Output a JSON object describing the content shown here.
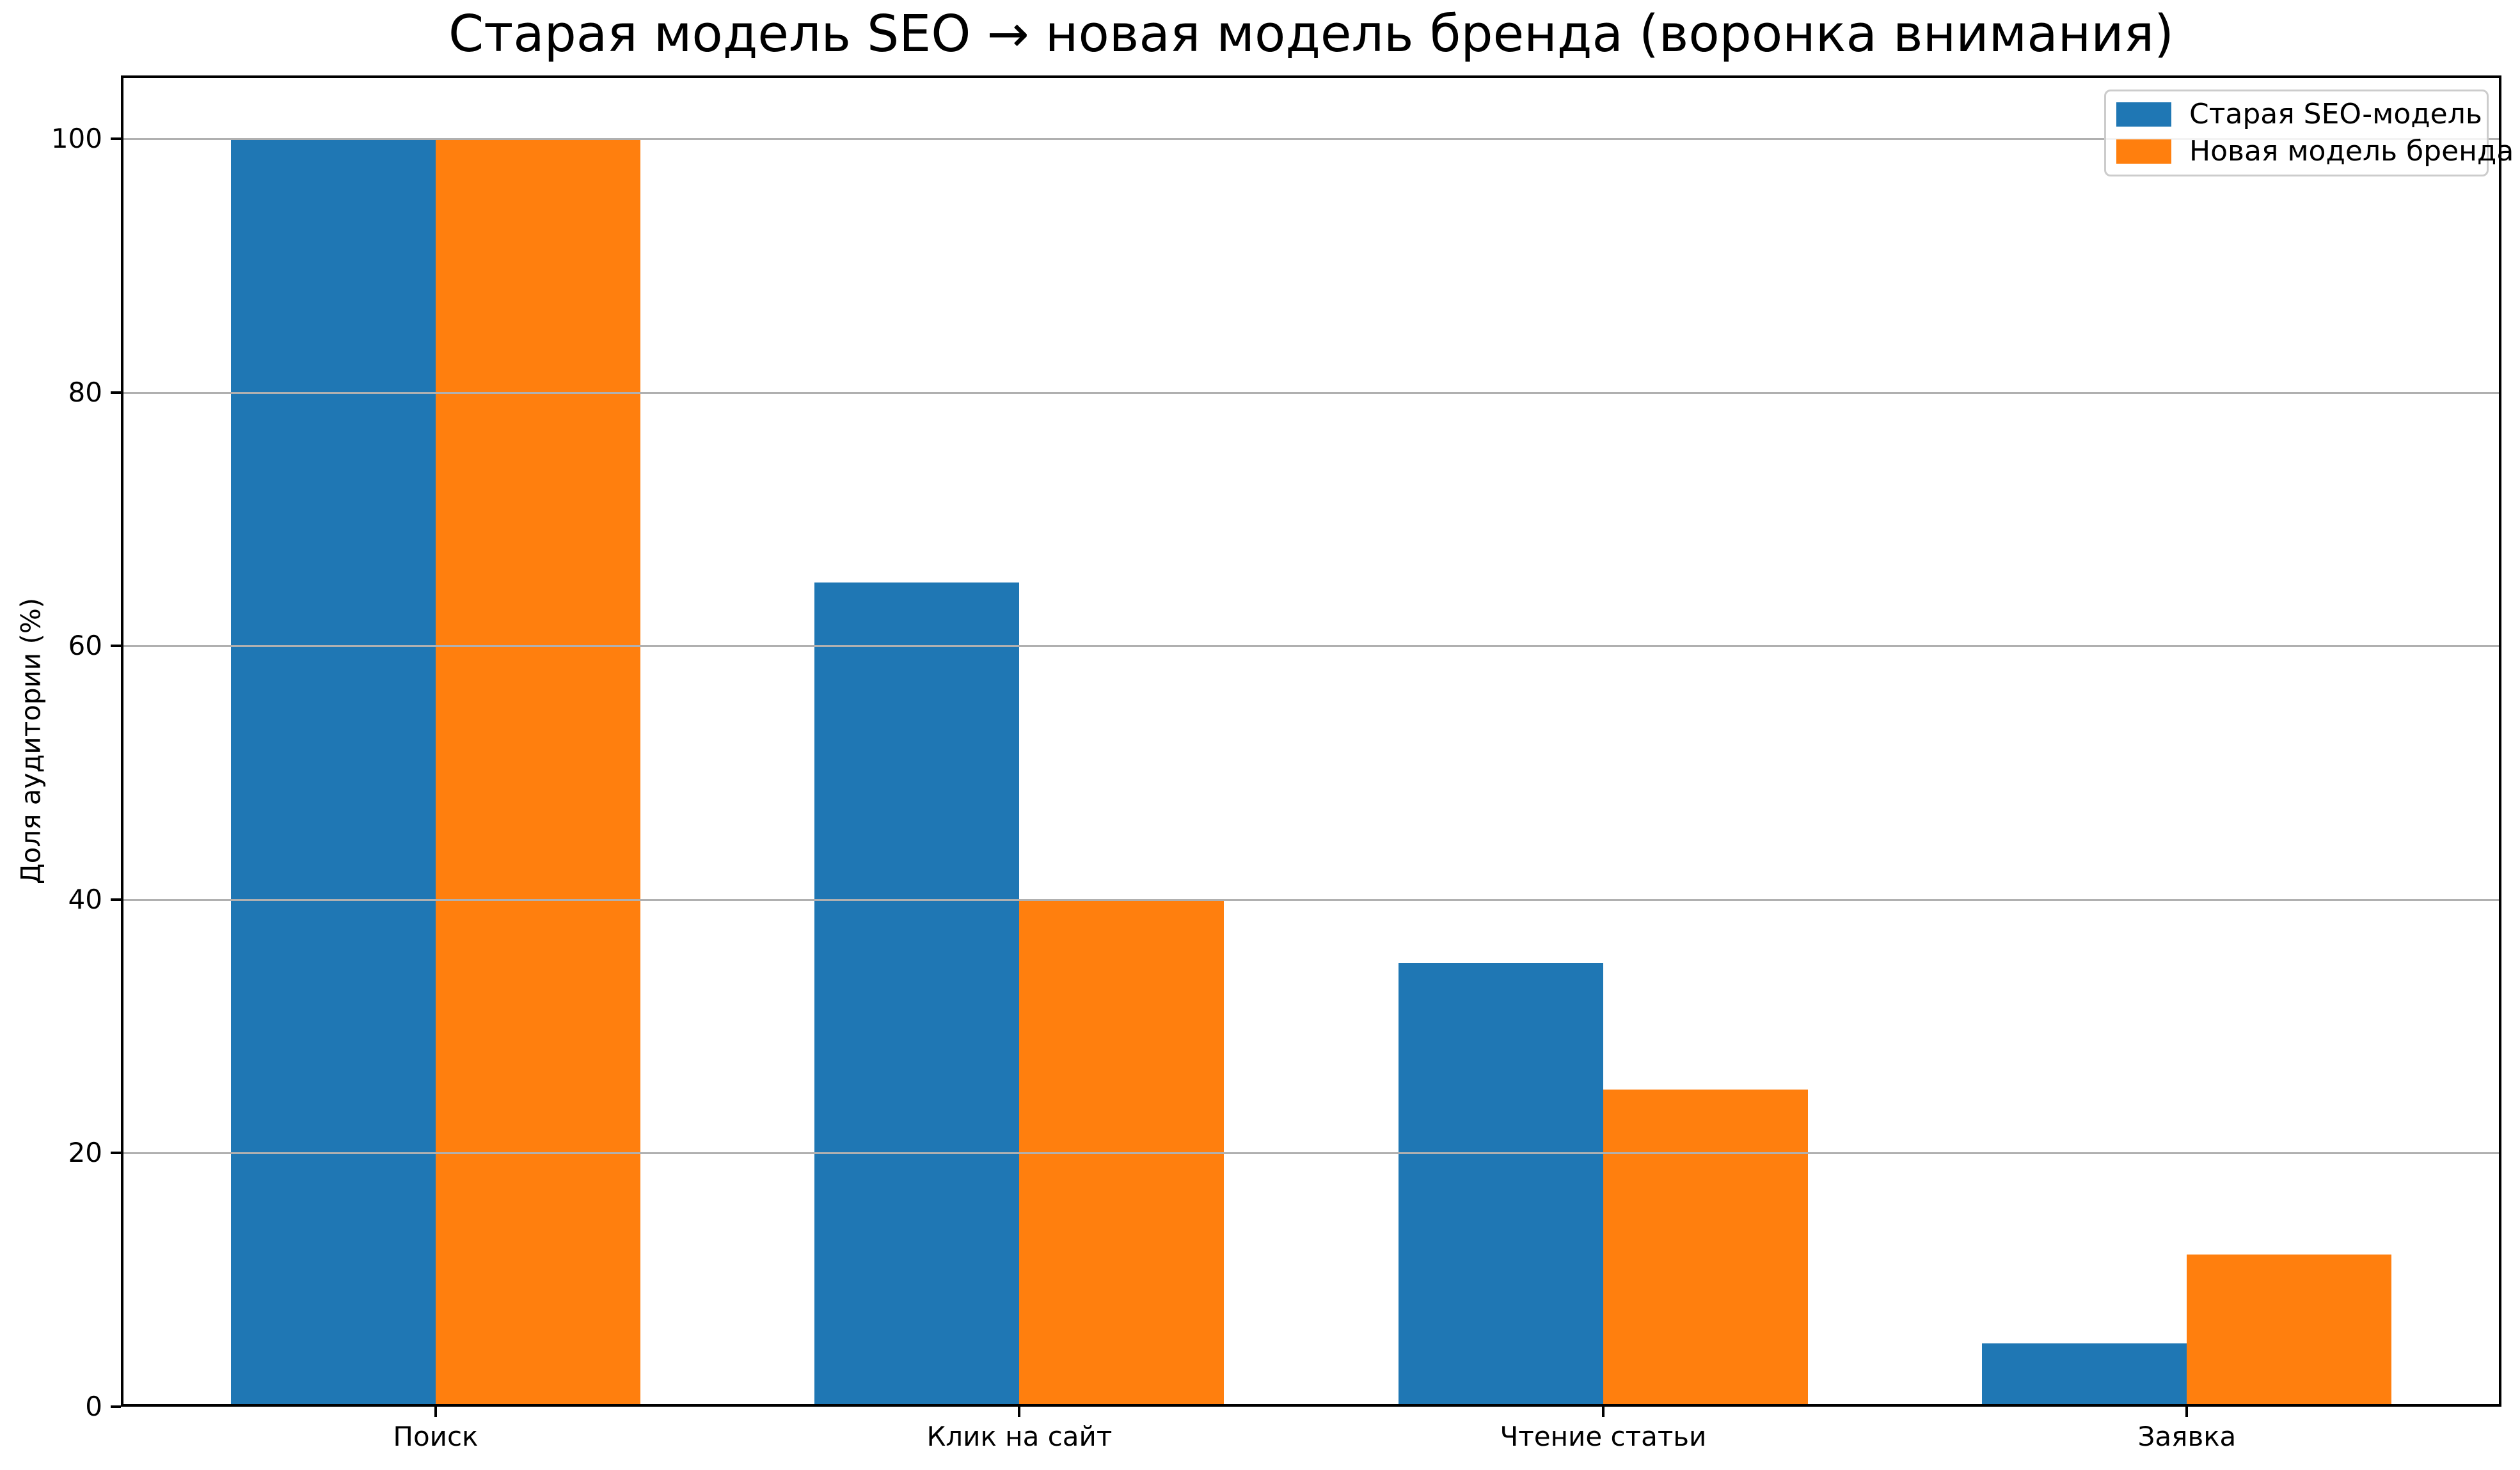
{
  "chart_data": {
    "type": "bar",
    "title": "Старая модель SEO → новая модель бренда (воронка внимания)",
    "xlabel": "",
    "ylabel": "Доля аудитории (%)",
    "categories": [
      "Поиск",
      "Клик на сайт",
      "Чтение статьи",
      "Заявка"
    ],
    "series": [
      {
        "name": "Старая SEO-модель",
        "color": "#1f77b4",
        "values": [
          100,
          65,
          35,
          5
        ]
      },
      {
        "name": "Новая модель бренда",
        "color": "#ff7f0e",
        "values": [
          100,
          40,
          25,
          12
        ]
      }
    ],
    "yticks": [
      0,
      20,
      40,
      60,
      80,
      100
    ],
    "ylim": [
      0,
      105
    ],
    "grid": "horizontal",
    "gridline_color": "#b0b0b0",
    "axis_color": "#000000",
    "legend_position": "upper right"
  }
}
